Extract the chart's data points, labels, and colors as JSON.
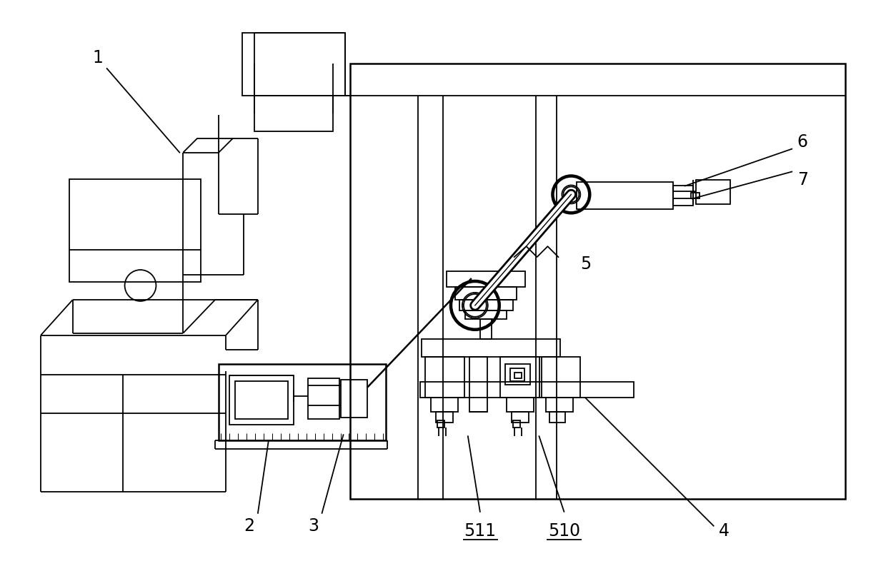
{
  "bg_color": "#ffffff",
  "line_color": "#000000",
  "lw": 1.3,
  "lw2": 1.8,
  "fig_width": 12.4,
  "fig_height": 7.86,
  "dpi": 100
}
